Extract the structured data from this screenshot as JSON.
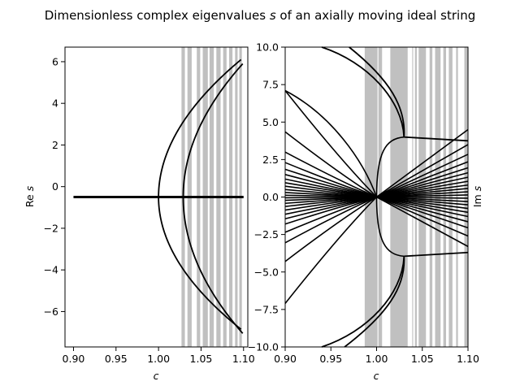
{
  "title": "Dimensionless complex eigenvalues s of an axially moving ideal string",
  "title_main": "Dimensionless complex eigenvalues ",
  "title_var": "s",
  "title_rest": " of an axially moving ideal string",
  "chart_data": [
    {
      "type": "line",
      "xlabel": "c",
      "ylabel": "Re s",
      "ylabel_prefix": "Re ",
      "ylabel_var": "s",
      "xlim": [
        0.89,
        1.105
      ],
      "ylim": [
        -7.7,
        6.7
      ],
      "xticks": [
        "0.90",
        "0.95",
        "1.00",
        "1.05",
        "1.10"
      ],
      "xtick_values": [
        0.9,
        0.95,
        1.0,
        1.05,
        1.1
      ],
      "yticks": [
        "−6",
        "−4",
        "−2",
        "0",
        "2",
        "4",
        "6"
      ],
      "ytick_values": [
        -6,
        -4,
        -2,
        0,
        2,
        4,
        6
      ],
      "shaded_bands": [
        [
          1.027,
          1.031
        ],
        [
          1.034,
          1.039
        ],
        [
          1.045,
          1.049
        ],
        [
          1.052,
          1.058
        ],
        [
          1.06,
          1.065
        ],
        [
          1.068,
          1.073
        ],
        [
          1.076,
          1.08
        ],
        [
          1.083,
          1.087
        ],
        [
          1.09,
          1.093
        ],
        [
          1.095,
          1.098
        ]
      ],
      "series": [
        {
          "values_x": [
            0.9,
            1.1
          ],
          "values_y": [
            -0.5,
            -0.5
          ]
        },
        {
          "values_x": [
            1.1,
            1.05,
            1.0,
            1.02,
            1.04
          ],
          "values_y": [
            6.1,
            3.5,
            -0.5,
            -3.0,
            -4.5
          ]
        },
        {
          "values_x": [
            1.1,
            1.05,
            1.029,
            1.05,
            1.1
          ],
          "values_y": [
            5.85,
            2.5,
            -0.5,
            -3.4,
            -7.0
          ]
        }
      ]
    },
    {
      "type": "line",
      "xlabel": "c",
      "ylabel": "Im s",
      "ylabel_prefix": "Im ",
      "ylabel_var": "s",
      "xlim": [
        0.9,
        1.1
      ],
      "ylim": [
        -10.0,
        10.0
      ],
      "xticks": [
        "0.90",
        "0.95",
        "1.00",
        "1.05",
        "1.10"
      ],
      "xtick_values": [
        0.9,
        0.95,
        1.0,
        1.05,
        1.1
      ],
      "yticks": [
        "−10.0",
        "−7.5",
        "−5.0",
        "−2.5",
        "0.0",
        "2.5",
        "5.0",
        "7.5",
        "10.0"
      ],
      "ytick_values": [
        -10.0,
        -7.5,
        -5.0,
        -2.5,
        0.0,
        2.5,
        5.0,
        7.5,
        10.0
      ],
      "shaded_bands": [
        [
          0.987,
          1.001
        ],
        [
          1.002,
          1.006
        ],
        [
          1.015,
          1.034
        ],
        [
          1.039,
          1.04
        ],
        [
          1.042,
          1.044
        ],
        [
          1.046,
          1.054
        ],
        [
          1.058,
          1.061
        ],
        [
          1.064,
          1.07
        ],
        [
          1.073,
          1.076
        ],
        [
          1.079,
          1.083
        ],
        [
          1.087,
          1.089
        ],
        [
          1.096,
          1.1
        ]
      ],
      "rays_left_y": [
        7.1,
        4.35,
        3.0,
        2.3,
        1.85,
        1.5,
        1.2,
        0.95,
        0.72,
        0.5,
        0.3,
        0.12,
        -0.05,
        -0.22,
        -0.42,
        -0.63,
        -0.87,
        -1.15,
        -1.45,
        -1.8,
        -2.35,
        -3.05,
        -4.3,
        -7.1
      ],
      "rays_right_y": [
        4.5,
        3.5,
        2.85,
        2.35,
        1.95,
        1.62,
        1.32,
        1.05,
        0.8,
        0.57,
        0.35,
        0.14,
        -0.08,
        -0.3,
        -0.52,
        -0.76,
        -1.02,
        -1.3,
        -1.65,
        -2.05,
        -2.6,
        -3.3
      ],
      "series": [
        {
          "values_x": [
            0.965,
            1.0,
            1.03
          ],
          "values_y": [
            10.0,
            6.0,
            4.0
          ]
        },
        {
          "values_x": [
            0.965,
            1.0,
            1.03
          ],
          "values_y": [
            -10.0,
            -6.0,
            -3.95
          ]
        },
        {
          "values_x": [
            1.03,
            1.1
          ],
          "values_y": [
            4.0,
            3.75
          ]
        },
        {
          "values_x": [
            1.03,
            1.1
          ],
          "values_y": [
            -3.95,
            -3.7
          ]
        }
      ]
    }
  ]
}
